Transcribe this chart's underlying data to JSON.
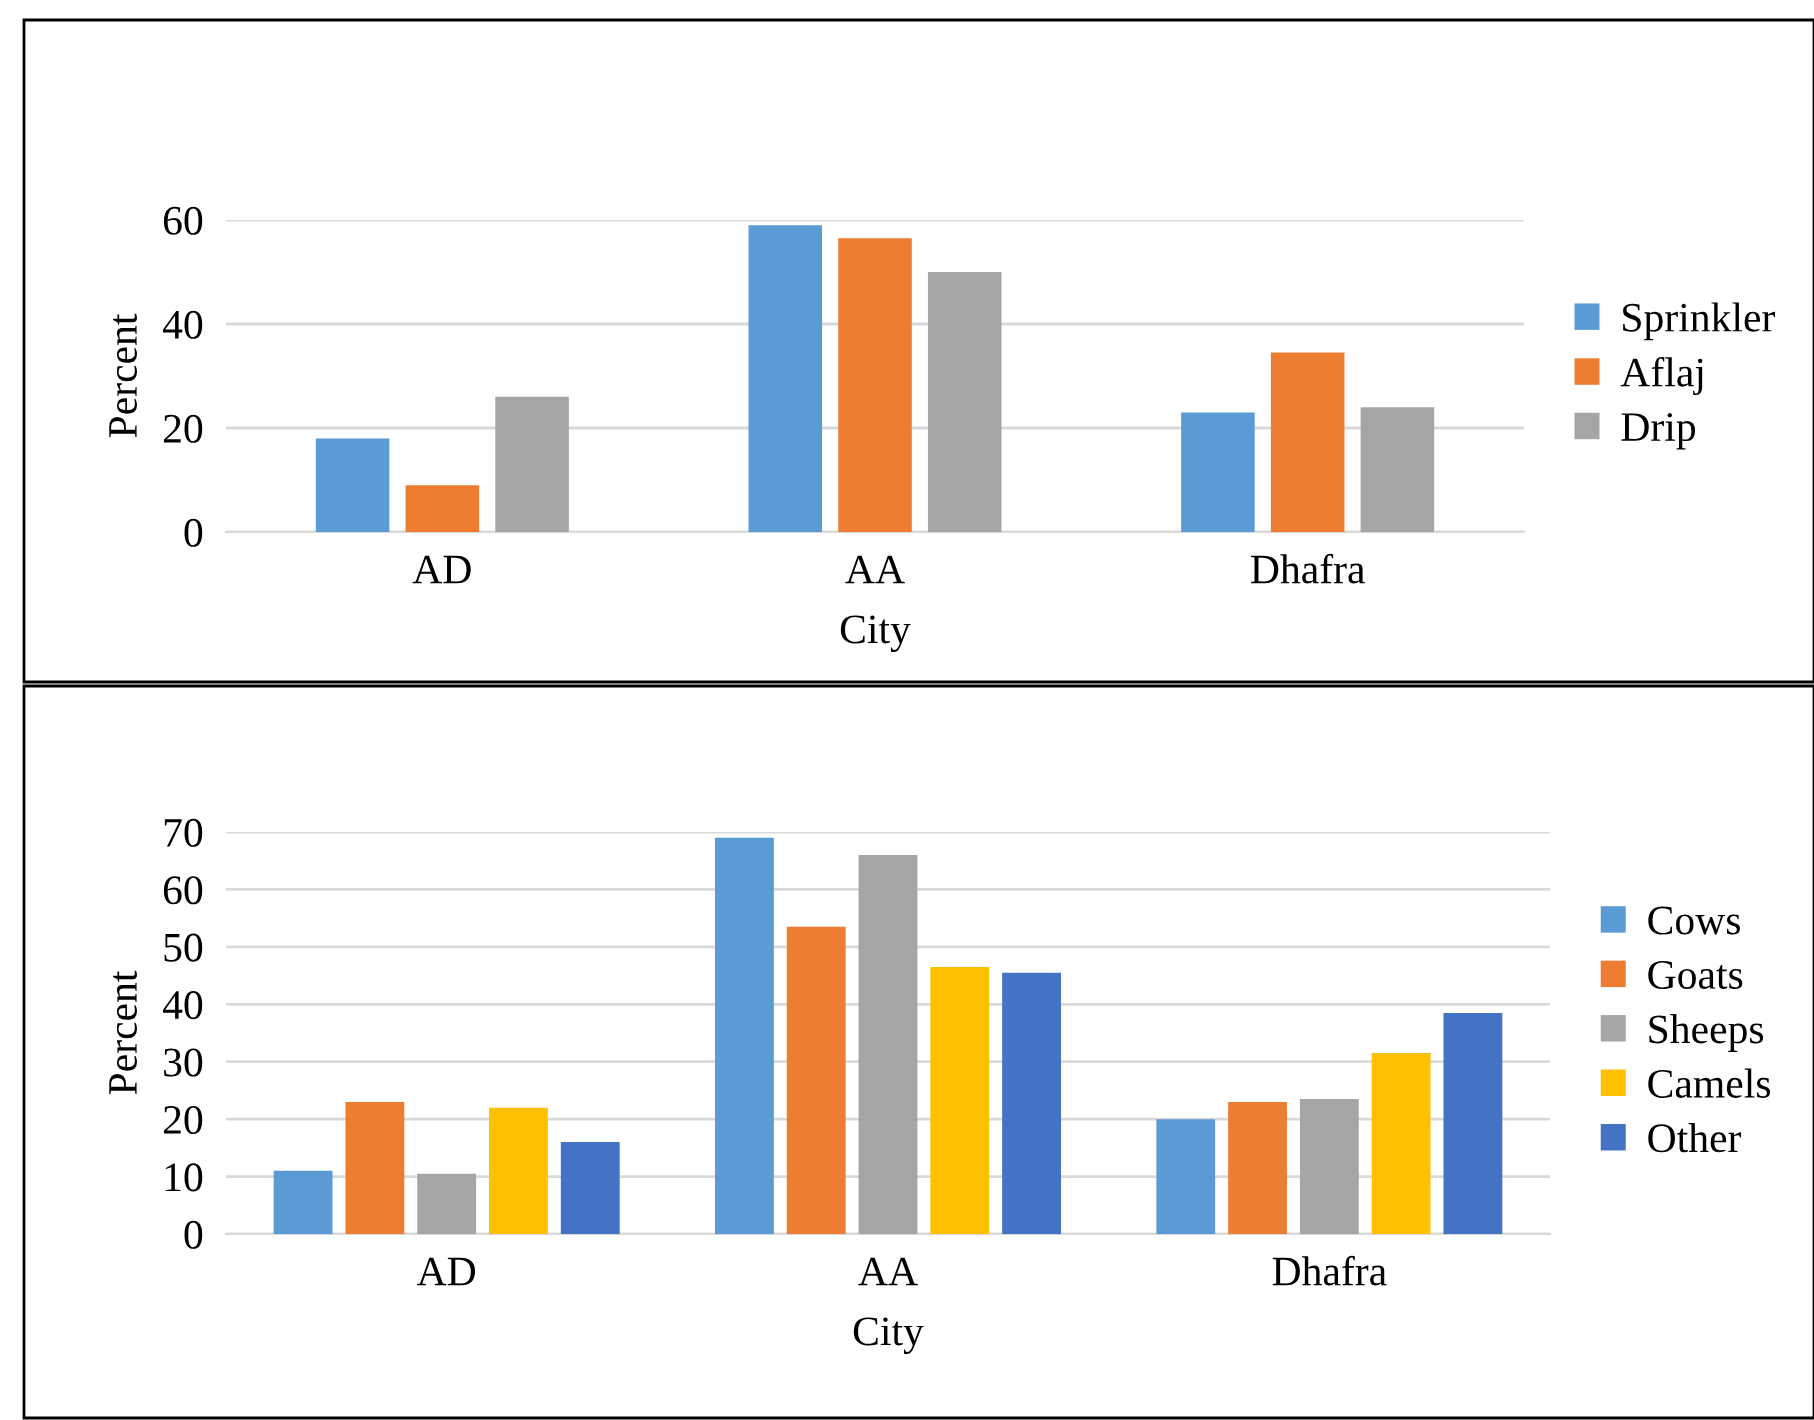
{
  "chart_data": [
    {
      "type": "bar",
      "xlabel": "City",
      "ylabel": "Percent",
      "categories": [
        "AD",
        "AA",
        "Dhafra"
      ],
      "ylim": [
        0,
        60
      ],
      "yticks": [
        0,
        20,
        40,
        60
      ],
      "grid": "y",
      "legend": "right",
      "series": [
        {
          "name": "Sprinkler",
          "color": "#5b9bd5",
          "values": [
            18,
            59,
            23
          ]
        },
        {
          "name": "Aflaj",
          "color": "#ed7d31",
          "values": [
            9,
            56.5,
            34.5
          ]
        },
        {
          "name": "Drip",
          "color": "#a5a5a5",
          "values": [
            26,
            50,
            24
          ]
        }
      ]
    },
    {
      "type": "bar",
      "xlabel": "City",
      "ylabel": "Percent",
      "categories": [
        "AD",
        "AA",
        "Dhafra"
      ],
      "ylim": [
        0,
        70
      ],
      "yticks": [
        0,
        10,
        20,
        30,
        40,
        50,
        60,
        70
      ],
      "grid": "y",
      "legend": "right",
      "series": [
        {
          "name": "Cows",
          "color": "#5b9bd5",
          "values": [
            11,
            69,
            20
          ]
        },
        {
          "name": "Goats",
          "color": "#ed7d31",
          "values": [
            23,
            53.5,
            23
          ]
        },
        {
          "name": "Sheeps",
          "color": "#a5a5a5",
          "values": [
            10.5,
            66,
            23.5
          ]
        },
        {
          "name": "Camels",
          "color": "#ffc000",
          "values": [
            22,
            46.5,
            31.5
          ]
        },
        {
          "name": "Other",
          "color": "#4472c4",
          "values": [
            16,
            45.5,
            38.5
          ]
        }
      ]
    }
  ]
}
